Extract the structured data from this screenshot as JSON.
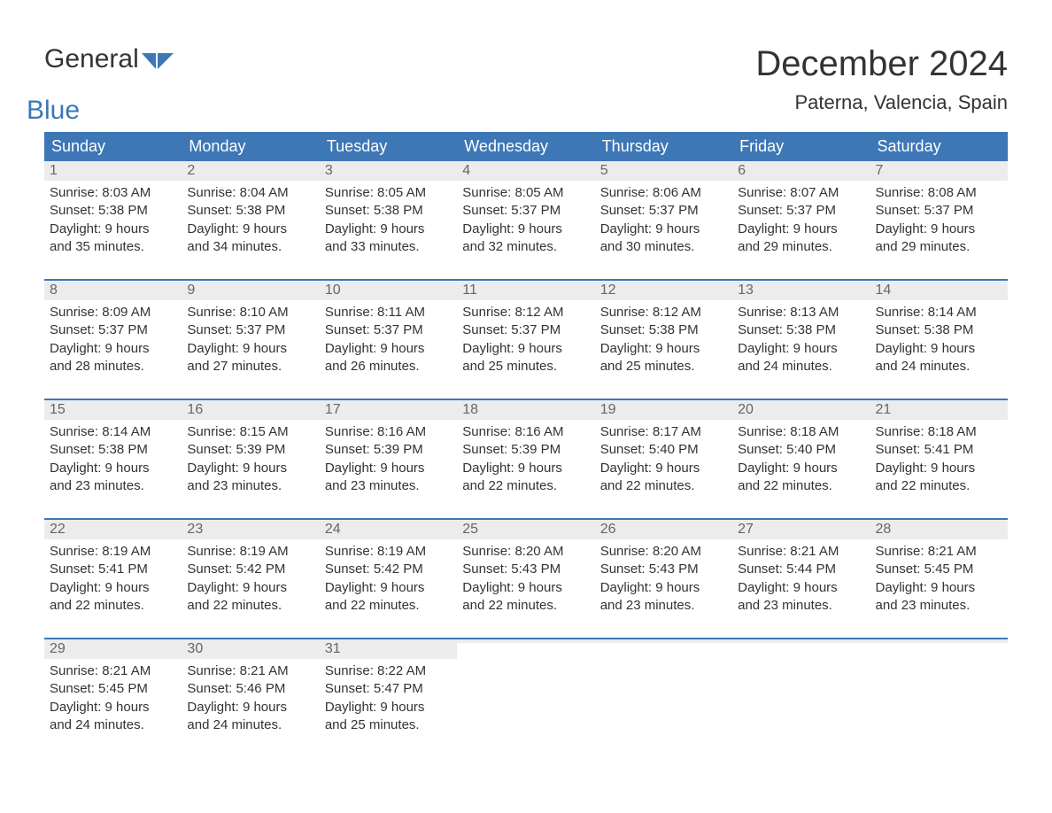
{
  "logo": {
    "part1": "General",
    "part2": "Blue",
    "icon_color": "#3d77b6"
  },
  "title": "December 2024",
  "location": "Paterna, Valencia, Spain",
  "colors": {
    "header_bg": "#3d77b6",
    "header_text": "#ffffff",
    "daynum_bg": "#ececec",
    "daynum_text": "#666666",
    "body_text": "#333333",
    "week_border": "#3d77b6",
    "page_bg": "#ffffff"
  },
  "day_headers": [
    "Sunday",
    "Monday",
    "Tuesday",
    "Wednesday",
    "Thursday",
    "Friday",
    "Saturday"
  ],
  "weeks": [
    [
      {
        "n": "1",
        "sunrise": "Sunrise: 8:03 AM",
        "sunset": "Sunset: 5:38 PM",
        "dl1": "Daylight: 9 hours",
        "dl2": "and 35 minutes."
      },
      {
        "n": "2",
        "sunrise": "Sunrise: 8:04 AM",
        "sunset": "Sunset: 5:38 PM",
        "dl1": "Daylight: 9 hours",
        "dl2": "and 34 minutes."
      },
      {
        "n": "3",
        "sunrise": "Sunrise: 8:05 AM",
        "sunset": "Sunset: 5:38 PM",
        "dl1": "Daylight: 9 hours",
        "dl2": "and 33 minutes."
      },
      {
        "n": "4",
        "sunrise": "Sunrise: 8:05 AM",
        "sunset": "Sunset: 5:37 PM",
        "dl1": "Daylight: 9 hours",
        "dl2": "and 32 minutes."
      },
      {
        "n": "5",
        "sunrise": "Sunrise: 8:06 AM",
        "sunset": "Sunset: 5:37 PM",
        "dl1": "Daylight: 9 hours",
        "dl2": "and 30 minutes."
      },
      {
        "n": "6",
        "sunrise": "Sunrise: 8:07 AM",
        "sunset": "Sunset: 5:37 PM",
        "dl1": "Daylight: 9 hours",
        "dl2": "and 29 minutes."
      },
      {
        "n": "7",
        "sunrise": "Sunrise: 8:08 AM",
        "sunset": "Sunset: 5:37 PM",
        "dl1": "Daylight: 9 hours",
        "dl2": "and 29 minutes."
      }
    ],
    [
      {
        "n": "8",
        "sunrise": "Sunrise: 8:09 AM",
        "sunset": "Sunset: 5:37 PM",
        "dl1": "Daylight: 9 hours",
        "dl2": "and 28 minutes."
      },
      {
        "n": "9",
        "sunrise": "Sunrise: 8:10 AM",
        "sunset": "Sunset: 5:37 PM",
        "dl1": "Daylight: 9 hours",
        "dl2": "and 27 minutes."
      },
      {
        "n": "10",
        "sunrise": "Sunrise: 8:11 AM",
        "sunset": "Sunset: 5:37 PM",
        "dl1": "Daylight: 9 hours",
        "dl2": "and 26 minutes."
      },
      {
        "n": "11",
        "sunrise": "Sunrise: 8:12 AM",
        "sunset": "Sunset: 5:37 PM",
        "dl1": "Daylight: 9 hours",
        "dl2": "and 25 minutes."
      },
      {
        "n": "12",
        "sunrise": "Sunrise: 8:12 AM",
        "sunset": "Sunset: 5:38 PM",
        "dl1": "Daylight: 9 hours",
        "dl2": "and 25 minutes."
      },
      {
        "n": "13",
        "sunrise": "Sunrise: 8:13 AM",
        "sunset": "Sunset: 5:38 PM",
        "dl1": "Daylight: 9 hours",
        "dl2": "and 24 minutes."
      },
      {
        "n": "14",
        "sunrise": "Sunrise: 8:14 AM",
        "sunset": "Sunset: 5:38 PM",
        "dl1": "Daylight: 9 hours",
        "dl2": "and 24 minutes."
      }
    ],
    [
      {
        "n": "15",
        "sunrise": "Sunrise: 8:14 AM",
        "sunset": "Sunset: 5:38 PM",
        "dl1": "Daylight: 9 hours",
        "dl2": "and 23 minutes."
      },
      {
        "n": "16",
        "sunrise": "Sunrise: 8:15 AM",
        "sunset": "Sunset: 5:39 PM",
        "dl1": "Daylight: 9 hours",
        "dl2": "and 23 minutes."
      },
      {
        "n": "17",
        "sunrise": "Sunrise: 8:16 AM",
        "sunset": "Sunset: 5:39 PM",
        "dl1": "Daylight: 9 hours",
        "dl2": "and 23 minutes."
      },
      {
        "n": "18",
        "sunrise": "Sunrise: 8:16 AM",
        "sunset": "Sunset: 5:39 PM",
        "dl1": "Daylight: 9 hours",
        "dl2": "and 22 minutes."
      },
      {
        "n": "19",
        "sunrise": "Sunrise: 8:17 AM",
        "sunset": "Sunset: 5:40 PM",
        "dl1": "Daylight: 9 hours",
        "dl2": "and 22 minutes."
      },
      {
        "n": "20",
        "sunrise": "Sunrise: 8:18 AM",
        "sunset": "Sunset: 5:40 PM",
        "dl1": "Daylight: 9 hours",
        "dl2": "and 22 minutes."
      },
      {
        "n": "21",
        "sunrise": "Sunrise: 8:18 AM",
        "sunset": "Sunset: 5:41 PM",
        "dl1": "Daylight: 9 hours",
        "dl2": "and 22 minutes."
      }
    ],
    [
      {
        "n": "22",
        "sunrise": "Sunrise: 8:19 AM",
        "sunset": "Sunset: 5:41 PM",
        "dl1": "Daylight: 9 hours",
        "dl2": "and 22 minutes."
      },
      {
        "n": "23",
        "sunrise": "Sunrise: 8:19 AM",
        "sunset": "Sunset: 5:42 PM",
        "dl1": "Daylight: 9 hours",
        "dl2": "and 22 minutes."
      },
      {
        "n": "24",
        "sunrise": "Sunrise: 8:19 AM",
        "sunset": "Sunset: 5:42 PM",
        "dl1": "Daylight: 9 hours",
        "dl2": "and 22 minutes."
      },
      {
        "n": "25",
        "sunrise": "Sunrise: 8:20 AM",
        "sunset": "Sunset: 5:43 PM",
        "dl1": "Daylight: 9 hours",
        "dl2": "and 22 minutes."
      },
      {
        "n": "26",
        "sunrise": "Sunrise: 8:20 AM",
        "sunset": "Sunset: 5:43 PM",
        "dl1": "Daylight: 9 hours",
        "dl2": "and 23 minutes."
      },
      {
        "n": "27",
        "sunrise": "Sunrise: 8:21 AM",
        "sunset": "Sunset: 5:44 PM",
        "dl1": "Daylight: 9 hours",
        "dl2": "and 23 minutes."
      },
      {
        "n": "28",
        "sunrise": "Sunrise: 8:21 AM",
        "sunset": "Sunset: 5:45 PM",
        "dl1": "Daylight: 9 hours",
        "dl2": "and 23 minutes."
      }
    ],
    [
      {
        "n": "29",
        "sunrise": "Sunrise: 8:21 AM",
        "sunset": "Sunset: 5:45 PM",
        "dl1": "Daylight: 9 hours",
        "dl2": "and 24 minutes."
      },
      {
        "n": "30",
        "sunrise": "Sunrise: 8:21 AM",
        "sunset": "Sunset: 5:46 PM",
        "dl1": "Daylight: 9 hours",
        "dl2": "and 24 minutes."
      },
      {
        "n": "31",
        "sunrise": "Sunrise: 8:22 AM",
        "sunset": "Sunset: 5:47 PM",
        "dl1": "Daylight: 9 hours",
        "dl2": "and 25 minutes."
      },
      {
        "empty": true
      },
      {
        "empty": true
      },
      {
        "empty": true
      },
      {
        "empty": true
      }
    ]
  ]
}
